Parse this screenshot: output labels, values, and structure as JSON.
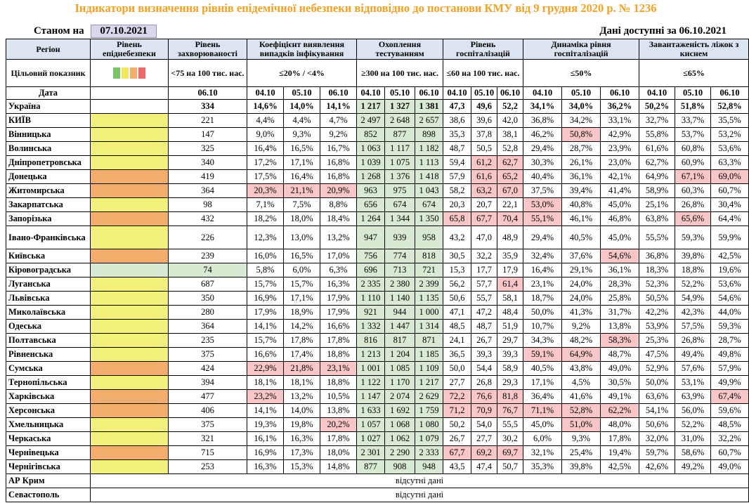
{
  "title": "Індикатори визначення рівнів епідемічної небезпеки відповідно до постанови КМУ від 9 грудня 2020 р. № 1236",
  "as_of_label": "Станом на",
  "as_of_date": "07.10.2021",
  "available_label": "Дані доступні за",
  "available_date": "06.10.2021",
  "headers": {
    "region": "Регіон",
    "danger_level": "Рівень епіднебезпеки",
    "incidence": "Рівень захворюваності",
    "detection": "Коефіцієнт виявлення випадків інфікування",
    "testing": "Охоплення тестуванням",
    "hospitalization": "Рівень госпіталізацій",
    "hosp_dynamics": "Динаміка рівня госпіталізацій",
    "oxygen": "Завантаженість ліжок з киснем"
  },
  "targets": {
    "label": "Цільовий показник",
    "incidence": "<75 на 100 тис. нас.",
    "detection": "≤20% / <4%",
    "testing": "≥300 на 100 тис. нас.",
    "hospitalization": "≤60 на 100 тис. нас.",
    "hosp_dynamics": "≤50%",
    "oxygen": "≤65%"
  },
  "level_colors": {
    "yellow": "#f0f07a",
    "orange": "#f5ad6e",
    "green": "#d9ead3",
    "red_cell": "#f8c6c6",
    "title": "#f4a020"
  },
  "dates": {
    "label": "Дата",
    "single": "06.10",
    "d1": "04.10",
    "d2": "05.10",
    "d3": "06.10"
  },
  "no_data_text": "відсутні дані",
  "rows": [
    {
      "name": "Україна",
      "level": "",
      "inc": "334",
      "det": [
        "14,6%",
        "14,0%",
        "14,1%"
      ],
      "test": [
        "1 217",
        "1 327",
        "1 381"
      ],
      "hosp": [
        "47,3",
        "49,6",
        "52,2"
      ],
      "dyn": [
        "34,1%",
        "34,0%",
        "36,2%"
      ],
      "oxy": [
        "50,2%",
        "51,8%",
        "52,8%"
      ],
      "red": []
    },
    {
      "name": "КИЇВ",
      "level": "yellow",
      "inc": "221",
      "det": [
        "4,4%",
        "4,4%",
        "4,7%"
      ],
      "test": [
        "2 497",
        "2 648",
        "2 657"
      ],
      "hosp": [
        "38,6",
        "39,6",
        "42,0"
      ],
      "dyn": [
        "36,8%",
        "34,2%",
        "33,1%"
      ],
      "oxy": [
        "32,7%",
        "33,7%",
        "35,5%"
      ],
      "red": []
    },
    {
      "name": "Вінницька",
      "level": "yellow",
      "inc": "147",
      "det": [
        "9,0%",
        "9,3%",
        "9,2%"
      ],
      "test": [
        "852",
        "877",
        "898"
      ],
      "hosp": [
        "35,3",
        "37,8",
        "38,1"
      ],
      "dyn": [
        "46,2%",
        "50,8%",
        "42,9%"
      ],
      "oxy": [
        "55,8%",
        "53,7%",
        "53,2%"
      ],
      "red": [
        "dyn1"
      ]
    },
    {
      "name": "Волинська",
      "level": "yellow",
      "inc": "325",
      "det": [
        "16,4%",
        "16,5%",
        "16,7%"
      ],
      "test": [
        "1 063",
        "1 117",
        "1 182"
      ],
      "hosp": [
        "48,7",
        "50,5",
        "52,8"
      ],
      "dyn": [
        "29,4%",
        "28,7%",
        "23,9%"
      ],
      "oxy": [
        "61,6%",
        "60,8%",
        "53,6%"
      ],
      "red": []
    },
    {
      "name": "Дніпропетровська",
      "level": "yellow",
      "inc": "340",
      "det": [
        "17,2%",
        "17,1%",
        "16,8%"
      ],
      "test": [
        "1 039",
        "1 075",
        "1 113"
      ],
      "hosp": [
        "59,4",
        "61,2",
        "62,7"
      ],
      "dyn": [
        "30,3%",
        "26,1%",
        "23,0%"
      ],
      "oxy": [
        "62,7%",
        "60,9%",
        "63,3%"
      ],
      "red": [
        "hosp1",
        "hosp2"
      ]
    },
    {
      "name": "Донецька",
      "level": "orange",
      "inc": "419",
      "det": [
        "17,5%",
        "16,4%",
        "16,8%"
      ],
      "test": [
        "1 268",
        "1 376",
        "1 418"
      ],
      "hosp": [
        "57,9",
        "61,6",
        "65,2"
      ],
      "dyn": [
        "40,4%",
        "36,1%",
        "42,1%"
      ],
      "oxy": [
        "64,9%",
        "67,1%",
        "69,0%"
      ],
      "red": [
        "hosp1",
        "hosp2",
        "oxy1",
        "oxy2"
      ]
    },
    {
      "name": "Житомирська",
      "level": "orange",
      "inc": "364",
      "det": [
        "20,3%",
        "21,1%",
        "20,9%"
      ],
      "test": [
        "963",
        "975",
        "1 043"
      ],
      "hosp": [
        "58,2",
        "63,2",
        "67,0"
      ],
      "dyn": [
        "37,5%",
        "39,4%",
        "41,4%"
      ],
      "oxy": [
        "58,9%",
        "60,3%",
        "60,7%"
      ],
      "red": [
        "det0",
        "det1",
        "det2",
        "hosp1",
        "hosp2"
      ]
    },
    {
      "name": "Закарпатська",
      "level": "yellow",
      "inc": "98",
      "det": [
        "7,1%",
        "7,5%",
        "8,8%"
      ],
      "test": [
        "656",
        "674",
        "674"
      ],
      "hosp": [
        "20,3",
        "20,7",
        "22,1"
      ],
      "dyn": [
        "53,0%",
        "40,8%",
        "45,0%"
      ],
      "oxy": [
        "25,1%",
        "26,8%",
        "30,4%"
      ],
      "red": [
        "dyn0"
      ]
    },
    {
      "name": "Запорізька",
      "level": "orange",
      "inc": "432",
      "det": [
        "18,2%",
        "18,0%",
        "18,4%"
      ],
      "test": [
        "1 264",
        "1 344",
        "1 350"
      ],
      "hosp": [
        "65,8",
        "67,7",
        "70,4"
      ],
      "dyn": [
        "55,1%",
        "46,1%",
        "46,8%"
      ],
      "oxy": [
        "63,8%",
        "65,6%",
        "64,4%"
      ],
      "red": [
        "hosp0",
        "hosp1",
        "hosp2",
        "dyn0",
        "oxy1"
      ]
    },
    {
      "name": "Івано-Франківська",
      "level": "yellow",
      "inc": "226",
      "det": [
        "12,3%",
        "13,0%",
        "13,2%"
      ],
      "test": [
        "947",
        "939",
        "958"
      ],
      "hosp": [
        "43,2",
        "47,0",
        "48,9"
      ],
      "dyn": [
        "29,4%",
        "40,5%",
        "45,0%"
      ],
      "oxy": [
        "55,5%",
        "59,3%",
        "59,9%"
      ],
      "red": [],
      "tall": true
    },
    {
      "name": "Київська",
      "level": "orange",
      "inc": "239",
      "det": [
        "16,0%",
        "16,5%",
        "17,0%"
      ],
      "test": [
        "756",
        "774",
        "818"
      ],
      "hosp": [
        "30,5",
        "32,2",
        "35,9"
      ],
      "dyn": [
        "32,4%",
        "37,6%",
        "54,6%"
      ],
      "oxy": [
        "36,8%",
        "39,8%",
        "42,5%"
      ],
      "red": [
        "dyn2"
      ]
    },
    {
      "name": "Кіровоградська",
      "level": "green",
      "inc": "74",
      "det": [
        "5,8%",
        "6,0%",
        "6,3%"
      ],
      "test": [
        "696",
        "713",
        "721"
      ],
      "hosp": [
        "15,3",
        "17,7",
        "17,9"
      ],
      "dyn": [
        "16,4%",
        "29,1%",
        "36,1%"
      ],
      "oxy": [
        "18,3%",
        "18,8%",
        "19,6%"
      ],
      "red": [],
      "incgreen": true
    },
    {
      "name": "Луганська",
      "level": "yellow",
      "inc": "687",
      "det": [
        "15,7%",
        "15,7%",
        "16,3%"
      ],
      "test": [
        "2 335",
        "2 380",
        "2 399"
      ],
      "hosp": [
        "56,2",
        "57,7",
        "61,4"
      ],
      "dyn": [
        "23,1%",
        "24,0%",
        "28,3%"
      ],
      "oxy": [
        "52,3%",
        "52,2%",
        "53,6%"
      ],
      "red": [
        "hosp2"
      ]
    },
    {
      "name": "Львівська",
      "level": "yellow",
      "inc": "350",
      "det": [
        "16,9%",
        "17,1%",
        "17,9%"
      ],
      "test": [
        "1 110",
        "1 140",
        "1 135"
      ],
      "hosp": [
        "50,6",
        "55,7",
        "58,1"
      ],
      "dyn": [
        "18,7%",
        "24,0%",
        "25,8%"
      ],
      "oxy": [
        "50,5%",
        "54,9%",
        "54,6%"
      ],
      "red": []
    },
    {
      "name": "Миколаївська",
      "level": "yellow",
      "inc": "280",
      "det": [
        "17,9%",
        "18,9%",
        "17,9%"
      ],
      "test": [
        "921",
        "944",
        "1 000"
      ],
      "hosp": [
        "47,1",
        "47,2",
        "48,4"
      ],
      "dyn": [
        "50,0%",
        "41,3%",
        "31,7%"
      ],
      "oxy": [
        "42,2%",
        "42,3%",
        "44,0%"
      ],
      "red": []
    },
    {
      "name": "Одеська",
      "level": "yellow",
      "inc": "364",
      "det": [
        "14,1%",
        "14,2%",
        "16,6%"
      ],
      "test": [
        "1 332",
        "1 447",
        "1 314"
      ],
      "hosp": [
        "48,5",
        "48,7",
        "51,9"
      ],
      "dyn": [
        "10,7%",
        "9,2%",
        "13,8%"
      ],
      "oxy": [
        "53,9%",
        "57,5%",
        "59,3%"
      ],
      "red": []
    },
    {
      "name": "Полтавська",
      "level": "yellow",
      "inc": "235",
      "det": [
        "15,7%",
        "17,8%",
        "17,8%"
      ],
      "test": [
        "816",
        "817",
        "871"
      ],
      "hosp": [
        "24,1",
        "26,7",
        "29,7"
      ],
      "dyn": [
        "34,3%",
        "48,2%",
        "58,3%"
      ],
      "oxy": [
        "25,3%",
        "26,8%",
        "28,7%"
      ],
      "red": [
        "dyn2"
      ]
    },
    {
      "name": "Рівненська",
      "level": "yellow",
      "inc": "375",
      "det": [
        "16,6%",
        "17,4%",
        "18,8%"
      ],
      "test": [
        "1 213",
        "1 204",
        "1 185"
      ],
      "hosp": [
        "36,5",
        "39,3",
        "39,3"
      ],
      "dyn": [
        "59,1%",
        "64,9%",
        "48,7%"
      ],
      "oxy": [
        "47,5%",
        "49,4%",
        "49,8%"
      ],
      "red": [
        "dyn0",
        "dyn1"
      ]
    },
    {
      "name": "Сумська",
      "level": "orange",
      "inc": "424",
      "det": [
        "22,9%",
        "21,8%",
        "23,1%"
      ],
      "test": [
        "1 001",
        "1 085",
        "1 109"
      ],
      "hosp": [
        "50,0",
        "54,4",
        "58,9"
      ],
      "dyn": [
        "40,5%",
        "43,8%",
        "49,0%"
      ],
      "oxy": [
        "52,9%",
        "57,6%",
        "57,9%"
      ],
      "red": [
        "det0",
        "det1",
        "det2"
      ]
    },
    {
      "name": "Тернопільська",
      "level": "yellow",
      "inc": "394",
      "det": [
        "18,1%",
        "18,1%",
        "18,8%"
      ],
      "test": [
        "1 122",
        "1 170",
        "1 217"
      ],
      "hosp": [
        "27,7",
        "26,8",
        "29,3"
      ],
      "dyn": [
        "17,1%",
        "4,5%",
        "30,5%"
      ],
      "oxy": [
        "50,0%",
        "53,1%",
        "49,9%"
      ],
      "red": []
    },
    {
      "name": "Харківська",
      "level": "orange",
      "inc": "477",
      "det": [
        "23,2%",
        "13,2%",
        "10,5%"
      ],
      "test": [
        "1 147",
        "2 074",
        "2 629"
      ],
      "hosp": [
        "72,2",
        "76,6",
        "81,8"
      ],
      "dyn": [
        "36,4%",
        "41,6%",
        "49,1%"
      ],
      "oxy": [
        "63,6%",
        "63,9%",
        "67,4%"
      ],
      "red": [
        "det0",
        "hosp0",
        "hosp1",
        "hosp2",
        "oxy2"
      ]
    },
    {
      "name": "Херсонська",
      "level": "orange",
      "inc": "406",
      "det": [
        "14,1%",
        "14,0%",
        "13,8%"
      ],
      "test": [
        "1 633",
        "1 692",
        "1 759"
      ],
      "hosp": [
        "71,2",
        "70,9",
        "76,7"
      ],
      "dyn": [
        "71,1%",
        "52,8%",
        "62,2%"
      ],
      "oxy": [
        "54,1%",
        "56,0%",
        "59,6%"
      ],
      "red": [
        "hosp0",
        "hosp1",
        "hosp2",
        "dyn0",
        "dyn1",
        "dyn2"
      ]
    },
    {
      "name": "Хмельницька",
      "level": "yellow",
      "inc": "375",
      "det": [
        "19,3%",
        "19,8%",
        "20,2%"
      ],
      "test": [
        "1 057",
        "1 068",
        "1 080"
      ],
      "hosp": [
        "50,2",
        "54,0",
        "55,5"
      ],
      "dyn": [
        "45,0%",
        "51,0%",
        "48,0%"
      ],
      "oxy": [
        "50,6%",
        "52,2%",
        "48,5%"
      ],
      "red": [
        "det2",
        "dyn1"
      ]
    },
    {
      "name": "Черкаська",
      "level": "yellow",
      "inc": "321",
      "det": [
        "16,1%",
        "16,3%",
        "17,8%"
      ],
      "test": [
        "1 027",
        "1 062",
        "1 079"
      ],
      "hosp": [
        "26,7",
        "27,7",
        "30,2"
      ],
      "dyn": [
        "6,0%",
        "9,3%",
        "17,8%"
      ],
      "oxy": [
        "32,0%",
        "31,0%",
        "32,2%"
      ],
      "red": []
    },
    {
      "name": "Чернівецька",
      "level": "orange",
      "inc": "715",
      "det": [
        "16,9%",
        "17,3%",
        "18,0%"
      ],
      "test": [
        "2 301",
        "2 290",
        "2 333"
      ],
      "hosp": [
        "67,7",
        "69,2",
        "69,7"
      ],
      "dyn": [
        "32,1%",
        "25,4%",
        "19,4%"
      ],
      "oxy": [
        "59,7%",
        "58,6%",
        "60,7%"
      ],
      "red": [
        "hosp0",
        "hosp1",
        "hosp2"
      ]
    },
    {
      "name": "Чернігівська",
      "level": "yellow",
      "inc": "253",
      "det": [
        "16,3%",
        "15,3%",
        "14,8%"
      ],
      "test": [
        "877",
        "908",
        "948"
      ],
      "hosp": [
        "43,5",
        "47,4",
        "50,7"
      ],
      "dyn": [
        "35,3%",
        "39,8%",
        "42,5%"
      ],
      "oxy": [
        "42,6%",
        "49,2%",
        "49,0%"
      ],
      "red": []
    }
  ],
  "no_data_rows": [
    {
      "name": "АР Крим"
    },
    {
      "name": "Севастополь"
    }
  ]
}
